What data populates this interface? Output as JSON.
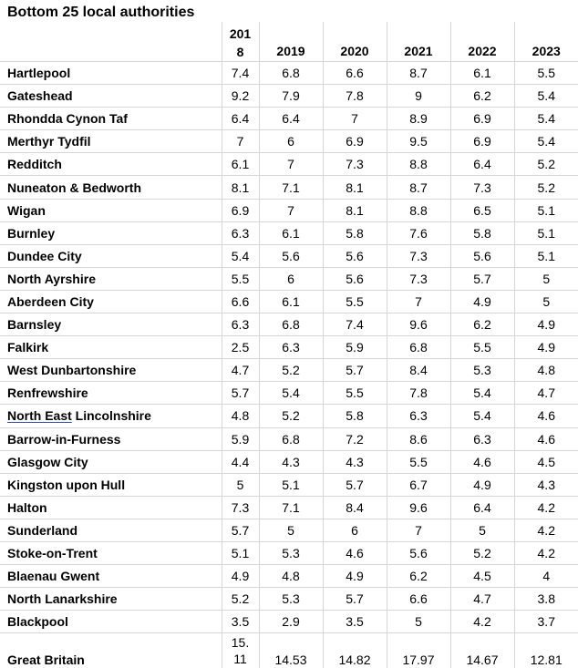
{
  "title": "Bottom 25 local authorities",
  "columns": [
    "2018",
    "2019",
    "2020",
    "2021",
    "2022",
    "2023"
  ],
  "rows": [
    {
      "name": "Hartlepool",
      "values": [
        "7.4",
        "6.8",
        "6.6",
        "8.7",
        "6.1",
        "5.5"
      ]
    },
    {
      "name": "Gateshead",
      "values": [
        "9.2",
        "7.9",
        "7.8",
        "9",
        "6.2",
        "5.4"
      ]
    },
    {
      "name": "Rhondda Cynon Taf",
      "values": [
        "6.4",
        "6.4",
        "7",
        "8.9",
        "6.9",
        "5.4"
      ]
    },
    {
      "name": "Merthyr Tydfil",
      "values": [
        "7",
        "6",
        "6.9",
        "9.5",
        "6.9",
        "5.4"
      ]
    },
    {
      "name": "Redditch",
      "values": [
        "6.1",
        "7",
        "7.3",
        "8.8",
        "6.4",
        "5.2"
      ]
    },
    {
      "name": "Nuneaton & Bedworth",
      "values": [
        "8.1",
        "7.1",
        "8.1",
        "8.7",
        "7.3",
        "5.2"
      ]
    },
    {
      "name": "Wigan",
      "values": [
        "6.9",
        "7",
        "8.1",
        "8.8",
        "6.5",
        "5.1"
      ]
    },
    {
      "name": "Burnley",
      "values": [
        "6.3",
        "6.1",
        "5.8",
        "7.6",
        "5.8",
        "5.1"
      ]
    },
    {
      "name": "Dundee City",
      "values": [
        "5.4",
        "5.6",
        "5.6",
        "7.3",
        "5.6",
        "5.1"
      ]
    },
    {
      "name": "North Ayrshire",
      "values": [
        "5.5",
        "6",
        "5.6",
        "7.3",
        "5.7",
        "5"
      ]
    },
    {
      "name": "Aberdeen City",
      "values": [
        "6.6",
        "6.1",
        "5.5",
        "7",
        "4.9",
        "5"
      ]
    },
    {
      "name": "Barnsley",
      "values": [
        "6.3",
        "6.8",
        "7.4",
        "9.6",
        "6.2",
        "4.9"
      ]
    },
    {
      "name": "Falkirk",
      "values": [
        "2.5",
        "6.3",
        "5.9",
        "6.8",
        "5.5",
        "4.9"
      ]
    },
    {
      "name": "West Dunbartonshire",
      "values": [
        "4.7",
        "5.2",
        "5.7",
        "8.4",
        "5.3",
        "4.8"
      ]
    },
    {
      "name": "Renfrewshire",
      "values": [
        "5.7",
        "5.4",
        "5.5",
        "7.8",
        "5.4",
        "4.7"
      ]
    },
    {
      "name": "North East Lincolnshire",
      "values": [
        "4.8",
        "5.2",
        "5.8",
        "6.3",
        "5.4",
        "4.6"
      ]
    },
    {
      "name": "Barrow-in-Furness",
      "values": [
        "5.9",
        "6.8",
        "7.2",
        "8.6",
        "6.3",
        "4.6"
      ]
    },
    {
      "name": "Glasgow City",
      "values": [
        "4.4",
        "4.3",
        "4.3",
        "5.5",
        "4.6",
        "4.5"
      ]
    },
    {
      "name": "Kingston upon Hull",
      "values": [
        "5",
        "5.1",
        "5.7",
        "6.7",
        "4.9",
        "4.3"
      ]
    },
    {
      "name": "Halton",
      "values": [
        "7.3",
        "7.1",
        "8.4",
        "9.6",
        "6.4",
        "4.2"
      ]
    },
    {
      "name": "Sunderland",
      "values": [
        "5.7",
        "5",
        "6",
        "7",
        "5",
        "4.2"
      ]
    },
    {
      "name": "Stoke-on-Trent",
      "values": [
        "5.1",
        "5.3",
        "4.6",
        "5.6",
        "5.2",
        "4.2"
      ]
    },
    {
      "name": "Blaenau Gwent",
      "values": [
        "4.9",
        "4.8",
        "4.9",
        "6.2",
        "4.5",
        "4"
      ]
    },
    {
      "name": "North Lanarkshire",
      "values": [
        "5.2",
        "5.3",
        "5.7",
        "6.6",
        "4.7",
        "3.8"
      ]
    },
    {
      "name": "Blackpool",
      "values": [
        "3.5",
        "2.9",
        "3.5",
        "5",
        "4.2",
        "3.7"
      ]
    }
  ],
  "footer": {
    "name": "Great Britain",
    "values": [
      "15.11",
      "14.53",
      "14.82",
      "17.97",
      "14.67",
      "12.81"
    ]
  },
  "colors": {
    "grid": "#d6d6d6",
    "footer_rule": "#000000",
    "text": "#000000"
  }
}
